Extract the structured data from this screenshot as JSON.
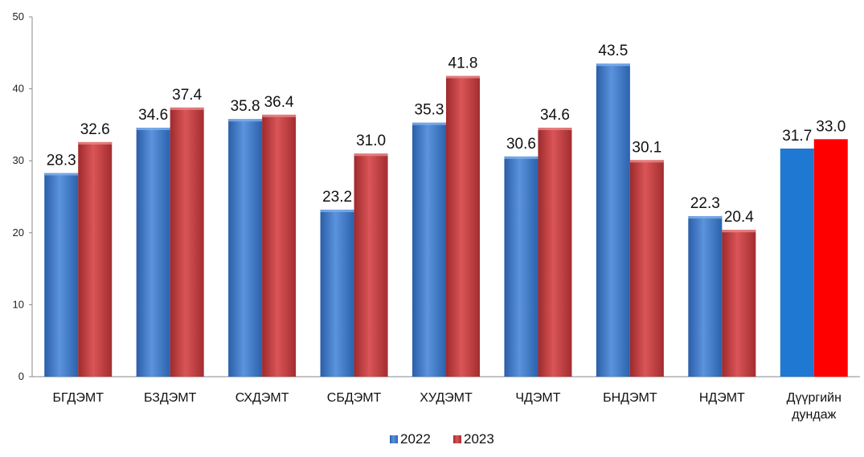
{
  "chart_data": {
    "type": "bar",
    "categories": [
      "БГДЭМТ",
      "БЗДЭМТ",
      "СХДЭМТ",
      "СБДЭМТ",
      "ХУДЭМТ",
      "ЧДЭМТ",
      "БНДЭМТ",
      "НДЭМТ",
      "Дүүргийн дундаж"
    ],
    "category_lines": [
      [
        "БГДЭМТ"
      ],
      [
        "БЗДЭМТ"
      ],
      [
        "СХДЭМТ"
      ],
      [
        "СБДЭМТ"
      ],
      [
        "ХУДЭМТ"
      ],
      [
        "ЧДЭМТ"
      ],
      [
        "БНДЭМТ"
      ],
      [
        "НДЭМТ"
      ],
      [
        "Дүүргийн",
        "дундаж"
      ]
    ],
    "series": [
      {
        "name": "2022",
        "values": [
          28.3,
          34.6,
          35.8,
          23.2,
          35.3,
          30.6,
          43.5,
          22.3,
          31.7
        ],
        "labels": [
          "28.3",
          "34.6",
          "35.8",
          "23.2",
          "35.3",
          "30.6",
          "43.5",
          "22.3",
          "31.7"
        ]
      },
      {
        "name": "2023",
        "values": [
          32.6,
          37.4,
          36.4,
          31.0,
          41.8,
          34.6,
          30.1,
          20.4,
          33.0
        ],
        "labels": [
          "32.6",
          "37.4",
          "36.4",
          "31.0",
          "41.8",
          "34.6",
          "30.1",
          "20.4",
          "33.0"
        ]
      }
    ],
    "yticks": [
      "0",
      "10",
      "20",
      "30",
      "40",
      "50"
    ],
    "ylim": [
      0,
      50
    ],
    "grid": false,
    "legend": "bottom",
    "colors": {
      "series_2022": "#3a75c4",
      "series_2023": "#c0393b",
      "highlight_2022": "#1f78d1",
      "highlight_2023": "#ff0000"
    }
  }
}
